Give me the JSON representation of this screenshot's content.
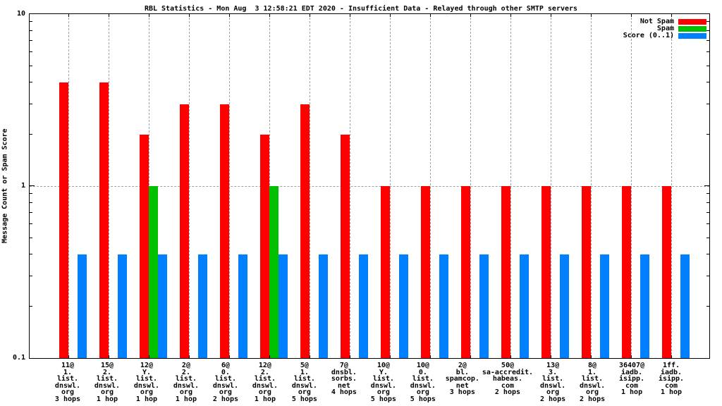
{
  "title": "RBL Statistics - Mon Aug  3 12:58:21 EDT 2020 - Insufficient Data - Relayed through other SMTP servers",
  "ylabel": "Message Count or Spam Score",
  "colors": {
    "not_spam": "#ff0000",
    "spam": "#00c000",
    "score": "#0080ff",
    "grid": "#a0a0a0"
  },
  "chart_data": {
    "type": "bar",
    "title": "RBL Statistics - Mon Aug  3 12:58:21 EDT 2020 - Insufficient Data - Relayed through other SMTP servers",
    "ylabel": "Message Count or Spam Score",
    "yscale": "log",
    "ylim": [
      0.1,
      10
    ],
    "grid": true,
    "legend_position": "top-right",
    "yticks": [
      {
        "value": 10,
        "label": "10"
      },
      {
        "value": 1,
        "label": "1"
      },
      {
        "value": 0.1,
        "label": "0.1"
      }
    ],
    "minor_yticks": [
      0.2,
      0.3,
      0.4,
      0.5,
      0.6,
      0.7,
      0.8,
      0.9,
      2,
      3,
      4,
      5,
      6,
      7,
      8,
      9
    ],
    "horizontal_gridlines_at": [
      1
    ],
    "categories": [
      [
        "11@",
        "1.",
        "list.",
        "dnswl.",
        "org",
        "3 hops"
      ],
      [
        "15@",
        "2.",
        "list.",
        "dnswl.",
        "org",
        "1 hop"
      ],
      [
        "12@",
        "Y.",
        "list.",
        "dnswl.",
        "org",
        "1 hop"
      ],
      [
        "2@",
        "2.",
        "list.",
        "dnswl.",
        "org",
        "1 hop"
      ],
      [
        "6@",
        "0.",
        "list.",
        "dnswl.",
        "org",
        "2 hops"
      ],
      [
        "12@",
        "2.",
        "list.",
        "dnswl.",
        "org",
        "1 hop"
      ],
      [
        "5@",
        "1.",
        "list.",
        "dnswl.",
        "org",
        "5 hops"
      ],
      [
        "7@",
        "dnsbl.",
        "sorbs.",
        "net",
        "4 hops"
      ],
      [
        "10@",
        "Y.",
        "list.",
        "dnswl.",
        "org",
        "5 hops"
      ],
      [
        "10@",
        "0.",
        "list.",
        "dnswl.",
        "org",
        "5 hops"
      ],
      [
        "2@",
        "bl.",
        "spamcop.",
        "net",
        "3 hops"
      ],
      [
        "50@",
        "sa-accredit.",
        "habeas.",
        "com",
        "2 hops"
      ],
      [
        "13@",
        "3.",
        "list.",
        "dnswl.",
        "org",
        "2 hops"
      ],
      [
        "8@",
        "1.",
        "list.",
        "dnswl.",
        "org",
        "2 hops"
      ],
      [
        "36407@",
        "iadb.",
        "isipp.",
        "com",
        "1 hop"
      ],
      [
        "1ff.",
        "iadb.",
        "isipp.",
        "com",
        "1 hop"
      ]
    ],
    "series": [
      {
        "name": "Not Spam",
        "color": "#ff0000",
        "values": [
          4,
          4,
          2,
          3,
          3,
          2,
          3,
          2,
          1,
          1,
          1,
          1,
          1,
          1,
          1,
          1
        ]
      },
      {
        "name": "Spam",
        "color": "#00c000",
        "values": [
          0,
          0,
          1,
          0,
          0,
          1,
          0,
          0,
          0,
          0,
          0,
          0,
          0,
          0,
          0,
          0
        ]
      },
      {
        "name": "Score (0..1)",
        "color": "#0080ff",
        "values": [
          0.4,
          0.4,
          0.4,
          0.4,
          0.4,
          0.4,
          0.4,
          0.4,
          0.4,
          0.4,
          0.4,
          0.4,
          0.4,
          0.4,
          0.4,
          0.4
        ]
      }
    ]
  }
}
